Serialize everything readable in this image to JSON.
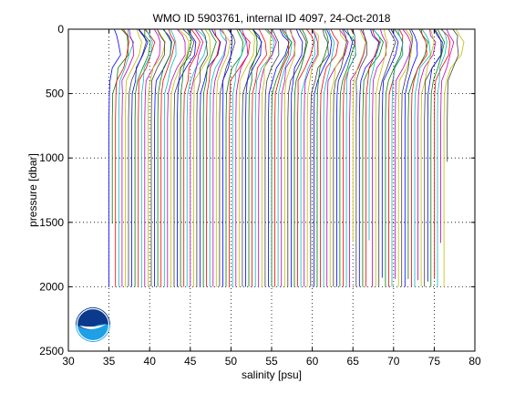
{
  "chart_data": {
    "type": "line",
    "title": "WMO ID 5903761, internal ID 4097, 24-Oct-2018",
    "xlabel": "salinity [psu]",
    "ylabel": "pressure [dbar]",
    "xlim": [
      30,
      80
    ],
    "ylim": [
      0,
      2500
    ],
    "y_reversed": true,
    "x_ticks": [
      30,
      35,
      40,
      45,
      50,
      55,
      60,
      65,
      70,
      75,
      80
    ],
    "y_ticks": [
      0,
      500,
      1000,
      1500,
      2000,
      2500
    ],
    "grid": "dotted",
    "legend": "none",
    "series_colors": [
      "#0000ff",
      "#008000",
      "#ff0000",
      "#00bfbf",
      "#bf00bf",
      "#bfbf00",
      "#404040"
    ],
    "profile_offset_step_psu": 0.4,
    "profile_count": 105,
    "first_profile_deep_salinity": 35.0,
    "typical_profile_shape": [
      {
        "pressure": 0,
        "salinity_rel": 0.9
      },
      {
        "pressure": 50,
        "salinity_rel": 1.3
      },
      {
        "pressure": 100,
        "salinity_rel": 1.6
      },
      {
        "pressure": 200,
        "salinity_rel": 1.4
      },
      {
        "pressure": 300,
        "salinity_rel": 0.7
      },
      {
        "pressure": 400,
        "salinity_rel": 0.25
      },
      {
        "pressure": 500,
        "salinity_rel": 0.05
      },
      {
        "pressure": 700,
        "salinity_rel": 0.0
      },
      {
        "pressure": 1000,
        "salinity_rel": 0.0
      },
      {
        "pressure": 1500,
        "salinity_rel": 0.0
      },
      {
        "pressure": 2000,
        "salinity_rel": 0.0
      }
    ],
    "profile_max_pressures": {
      "default": 2000,
      "short_profiles": [
        {
          "index": 1,
          "max_pressure": 1510
        },
        {
          "index": 75,
          "max_pressure": 1650
        },
        {
          "index": 80,
          "max_pressure": 1640
        },
        {
          "index": 84,
          "max_pressure": 1930
        },
        {
          "index": 88,
          "max_pressure": 1940
        },
        {
          "index": 92,
          "max_pressure": 1940
        },
        {
          "index": 95,
          "max_pressure": 1950
        },
        {
          "index": 98,
          "max_pressure": 1960
        },
        {
          "index": 100,
          "max_pressure": 1940
        },
        {
          "index": 102,
          "max_pressure": 1660
        },
        {
          "index": 104,
          "max_pressure": 1030
        }
      ]
    }
  },
  "logo": {
    "label": "NOAA",
    "colors": {
      "sky": "#0b3a8c",
      "sea": "#1ea0e6",
      "bird": "#ffffff"
    }
  }
}
